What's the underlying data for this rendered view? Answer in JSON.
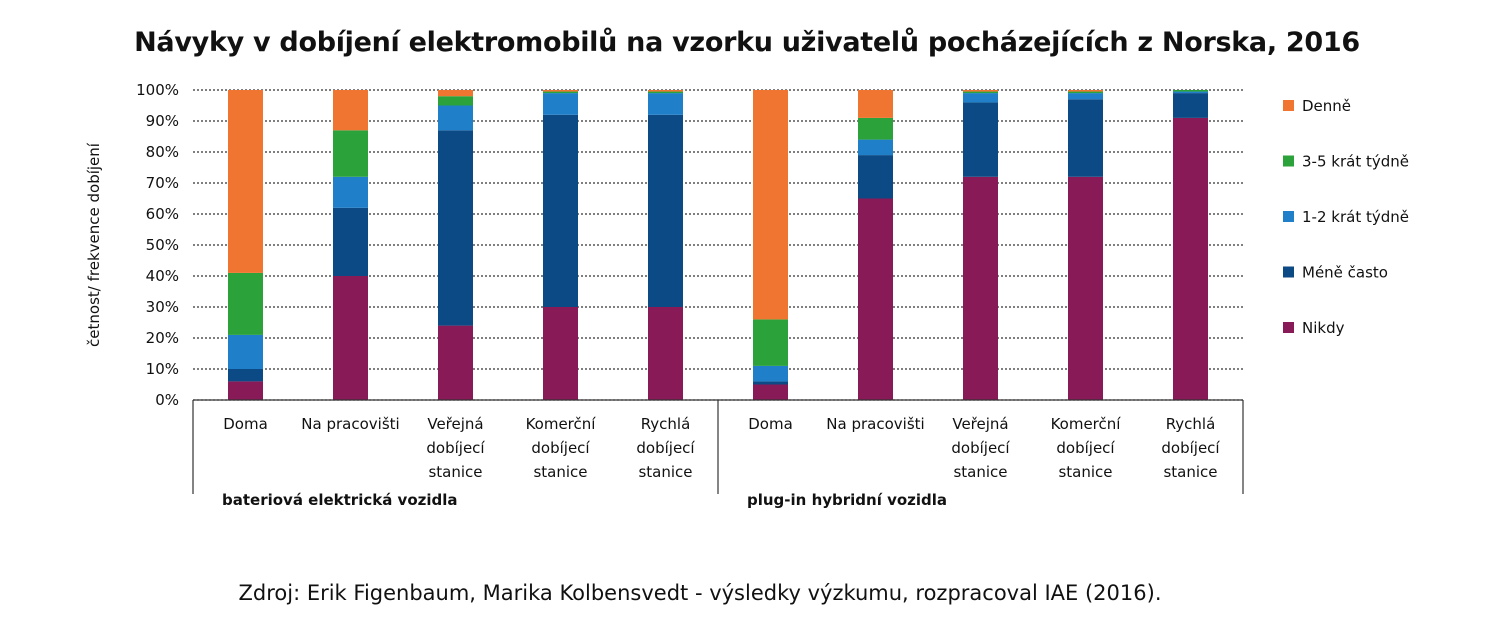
{
  "chart_data": {
    "type": "bar",
    "stacked": true,
    "title": "Návyky v dobíjení elektromobilů na vzorku uživatelů pocházejících z Norska, 2016",
    "ylabel": "četnost/ frekvence dobíjení",
    "ylim": [
      0,
      100
    ],
    "yticks": [
      "0%",
      "10%",
      "20%",
      "30%",
      "40%",
      "50%",
      "60%",
      "70%",
      "80%",
      "90%",
      "100%"
    ],
    "grid": true,
    "legend": "right",
    "groups": [
      {
        "name": "bateriová elektrická vozidla",
        "count": 5
      },
      {
        "name": "plug-in hybridní vozidla",
        "count": 5
      }
    ],
    "categories": [
      [
        "Doma"
      ],
      [
        "Na pracovišti"
      ],
      [
        "Veřejná",
        "dobíjecí",
        "stanice"
      ],
      [
        "Komerční",
        "dobíjecí",
        "stanice"
      ],
      [
        "Rychlá",
        "dobíjecí",
        "stanice"
      ],
      [
        "Doma"
      ],
      [
        "Na pracovišti"
      ],
      [
        "Veřejná",
        "dobíjecí",
        "stanice"
      ],
      [
        "Komerční",
        "dobíjecí",
        "stanice"
      ],
      [
        "Rychlá",
        "dobíjecí",
        "stanice"
      ]
    ],
    "series": [
      {
        "name": "Nikdy",
        "color": "#871a57",
        "values": [
          6,
          40,
          24,
          30,
          30,
          5,
          65,
          72,
          72,
          91
        ]
      },
      {
        "name": "Méně často",
        "color": "#0c4a86",
        "values": [
          4,
          22,
          63,
          62,
          62,
          1,
          14,
          24,
          25,
          8
        ]
      },
      {
        "name": "1-2 krát týdně",
        "color": "#1f7fc8",
        "values": [
          11,
          10,
          8,
          7,
          7,
          5,
          5,
          3,
          2,
          0.5
        ]
      },
      {
        "name": "3-5 krát týdně",
        "color": "#2ca23b",
        "values": [
          20,
          15,
          3,
          0.5,
          0.5,
          15,
          7,
          0.5,
          0.5,
          0.5
        ]
      },
      {
        "name": "Denně",
        "color": "#f07530",
        "values": [
          59,
          13,
          2,
          0.5,
          0.5,
          74,
          9,
          0.5,
          0.5,
          0
        ]
      }
    ],
    "legend_order": [
      "Denně",
      "3-5 krát týdně",
      "1-2 krát týdně",
      "Méně často",
      "Nikdy"
    ]
  },
  "source": "Zdroj: Erik Figenbaum, Marika Kolbensvedt - výsledky výzkumu, rozpracoval IAE (2016)."
}
